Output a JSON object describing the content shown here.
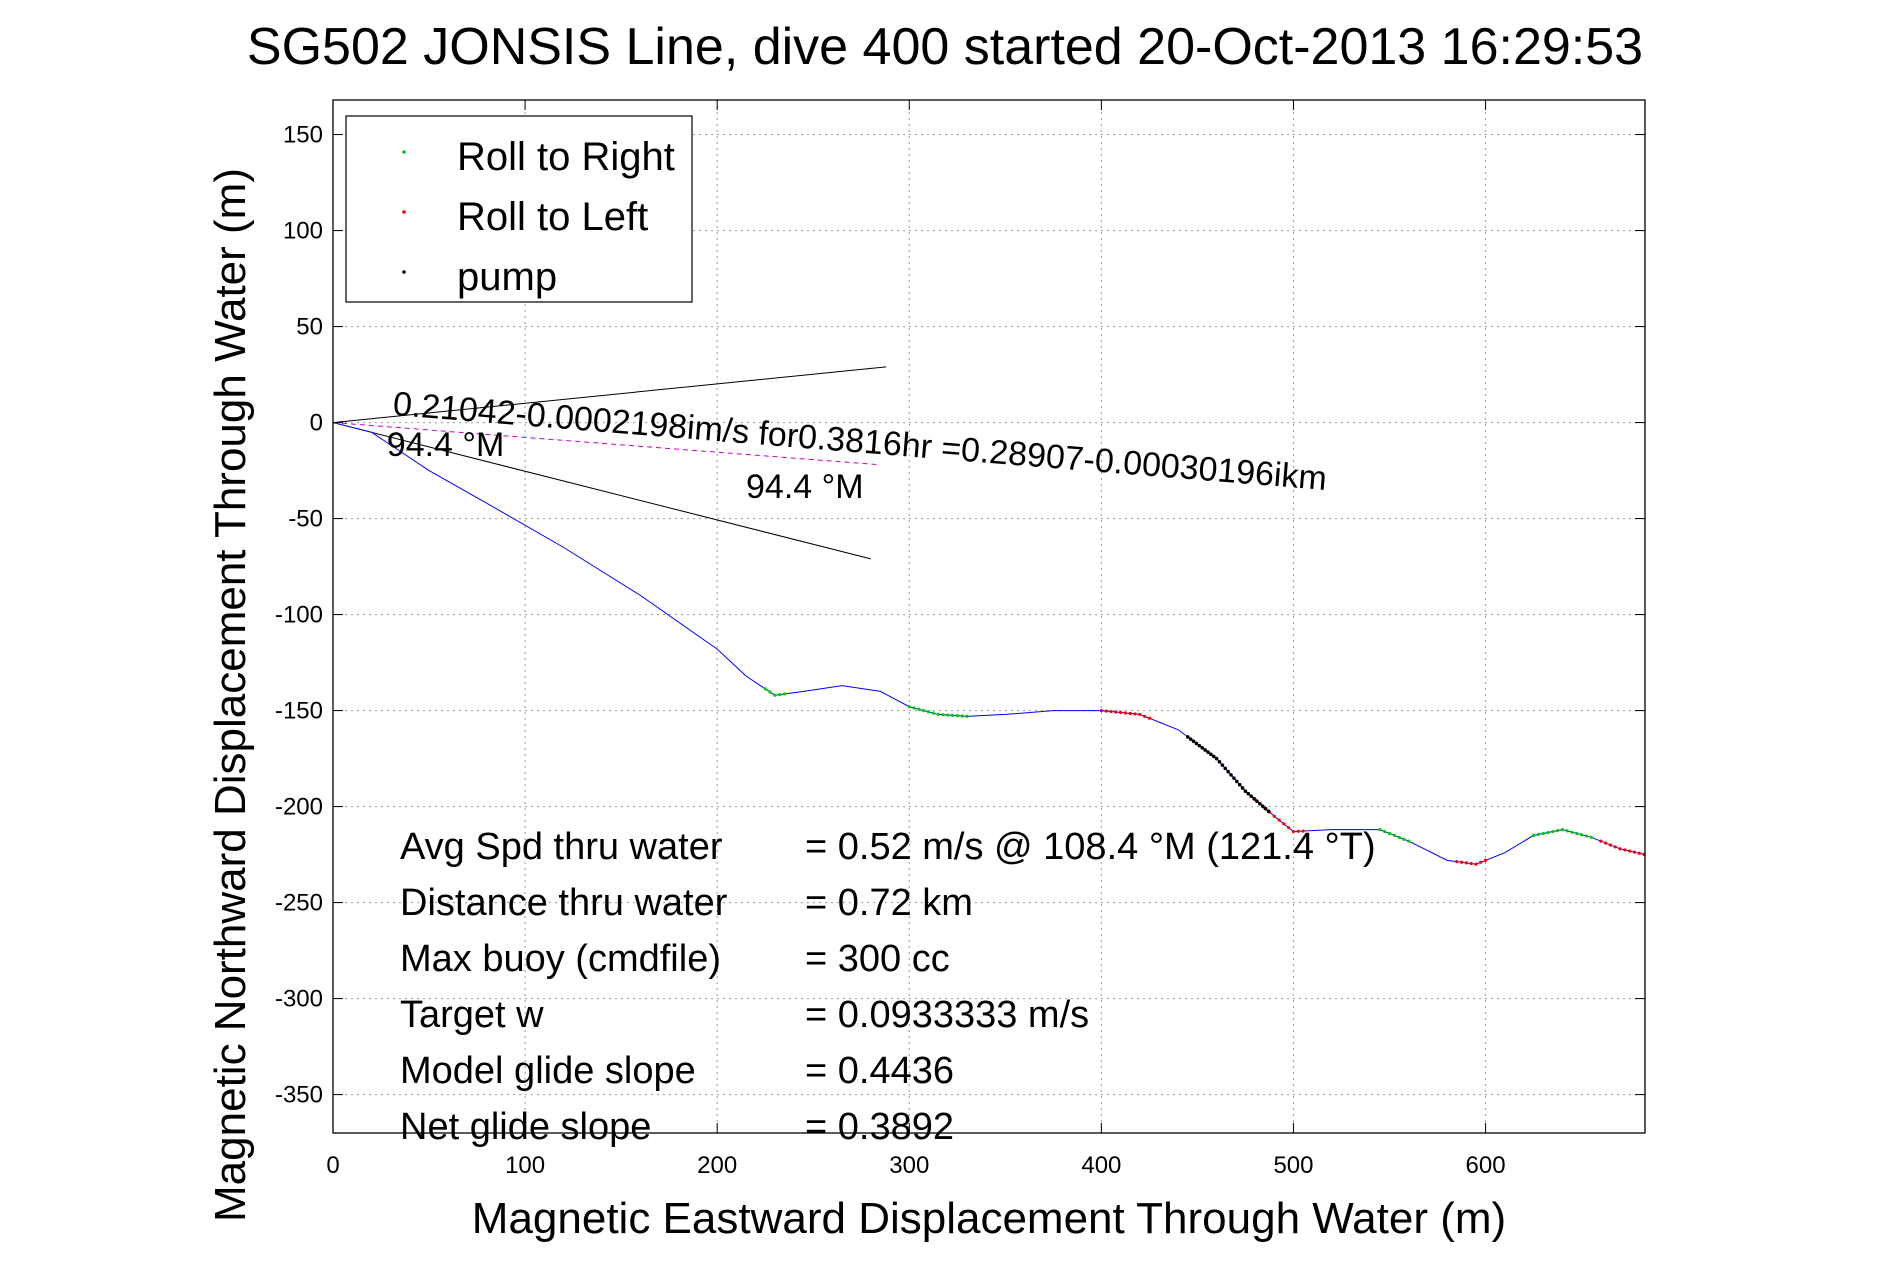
{
  "chart_data": {
    "type": "scatter",
    "title": "SG502 JONSIS Line, dive 400 started 20-Oct-2013 16:29:53",
    "xlabel": "Magnetic Eastward Displacement Through Water (m)",
    "ylabel": "Magnetic Northward Displacement Through Water (m)",
    "xlim": [
      0,
      683
    ],
    "ylim": [
      -370,
      168
    ],
    "xticks": [
      0,
      100,
      200,
      300,
      400,
      500,
      600
    ],
    "yticks": [
      150,
      100,
      50,
      0,
      -50,
      -100,
      -150,
      -200,
      -250,
      -300,
      -350
    ],
    "grid": true,
    "legend_position": "top-left",
    "legend": [
      {
        "label": "Roll to Right",
        "color": "#00cc00"
      },
      {
        "label": "Roll to Left",
        "color": "#ff0000"
      },
      {
        "label": "pump",
        "color": "#000000"
      }
    ],
    "track": {
      "color": "#0000ff",
      "x": [
        0,
        20,
        50,
        80,
        120,
        160,
        200,
        215,
        230,
        245,
        265,
        285,
        300,
        315,
        330,
        350,
        375,
        400,
        420,
        440,
        460,
        475,
        490,
        500,
        520,
        545,
        560,
        580,
        595,
        610,
        625,
        640,
        655,
        670,
        683
      ],
      "y": [
        0,
        -5,
        -25,
        -42,
        -65,
        -90,
        -118,
        -132,
        -142,
        -140,
        -137,
        -140,
        -148,
        -152,
        -153,
        -152,
        -150,
        -150,
        -152,
        -160,
        -175,
        -192,
        -205,
        -213,
        -212,
        -212,
        -218,
        -228,
        -230,
        -224,
        -215,
        -212,
        -216,
        -222,
        -225
      ]
    },
    "roll_right_segments": [
      [
        225,
        235
      ],
      [
        300,
        330
      ],
      [
        545,
        560
      ],
      [
        625,
        655
      ]
    ],
    "roll_left_segments": [
      [
        400,
        425
      ],
      [
        480,
        505
      ],
      [
        585,
        600
      ],
      [
        660,
        683
      ]
    ],
    "pump_segments": [
      [
        445,
        488
      ]
    ],
    "current_vector": {
      "color": "#cc00cc",
      "x": [
        0,
        285
      ],
      "y": [
        0,
        -22
      ],
      "label": "0.21042-0.0002198im/s for0.3816hr =0.28907-0.00030196ikm"
    },
    "heading_lines": [
      {
        "x": [
          0,
          288
        ],
        "y": [
          0,
          29
        ]
      },
      {
        "x": [
          0,
          280
        ],
        "y": [
          0,
          -71
        ]
      }
    ],
    "heading_labels": [
      {
        "text": "94.4 °M",
        "x": 28,
        "y": -10
      },
      {
        "text": "94.4 °M",
        "x": 215,
        "y": -32
      }
    ],
    "stats": [
      {
        "label": "Avg Spd thru water",
        "value": "=  0.52 m/s @ 108.4 °M (121.4 °T)"
      },
      {
        "label": "Distance thru water",
        "value": "=  0.72 km"
      },
      {
        "label": "Max buoy (cmdfile)",
        "value": "= 300 cc"
      },
      {
        "label": "Target w",
        "value": "= 0.0933333 m/s"
      },
      {
        "label": "Model glide slope",
        "value": "= 0.4436"
      },
      {
        "label": "Net glide slope",
        "value": "= 0.3892"
      }
    ]
  }
}
